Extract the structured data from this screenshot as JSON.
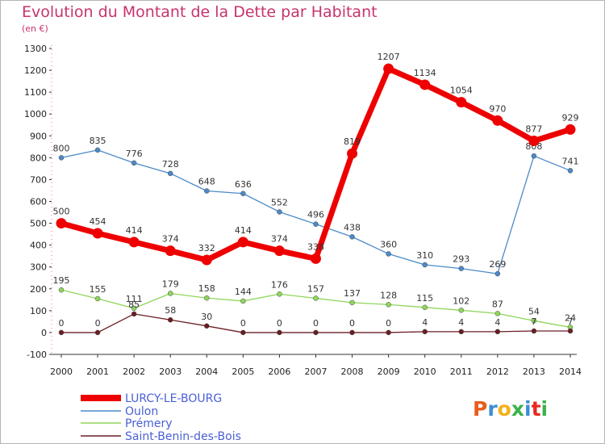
{
  "title": "Evolution du Montant de la Dette par Habitant",
  "unit": "(en €)",
  "logo": {
    "letters": [
      "P",
      "r",
      "o",
      "x",
      "i",
      "t",
      "i"
    ],
    "colors": [
      "#e85c1a",
      "#3a8fd4",
      "#f2b21c",
      "#3bb24a",
      "#3a8fd4",
      "#e8291f",
      "#3bb24a"
    ]
  },
  "chart_data": {
    "type": "line",
    "x": [
      2000,
      2001,
      2002,
      2003,
      2004,
      2005,
      2006,
      2007,
      2008,
      2009,
      2010,
      2011,
      2012,
      2013,
      2014
    ],
    "xlabels": [
      "2000",
      "2001",
      "2002",
      "2003",
      "2004",
      "2005",
      "2006",
      "2007",
      "2008",
      "2009",
      "2010",
      "2011",
      "2012",
      "2013",
      "2014"
    ],
    "ylim": [
      -100,
      1300
    ],
    "yticks": [
      -100,
      0,
      100,
      200,
      300,
      400,
      500,
      600,
      700,
      800,
      900,
      1000,
      1100,
      1200,
      1300
    ],
    "ytick_labels": [
      "-100",
      "0",
      "100",
      "200",
      "300",
      "400",
      "500",
      "600",
      "700",
      "800",
      "900",
      "1000",
      "1100",
      "1200",
      "1300"
    ],
    "grid": false,
    "legend_position": "bottom-left",
    "series": [
      {
        "name": "Oulon",
        "color": "#4a8ac9",
        "values": [
          800,
          835,
          776,
          728,
          648,
          636,
          552,
          496,
          438,
          360,
          310,
          293,
          269,
          808,
          741
        ],
        "labels": [
          "800",
          "835",
          "776",
          "728",
          "648",
          "636",
          "552",
          "496",
          "438",
          "360",
          "310",
          "293",
          "269",
          "808",
          "741"
        ]
      },
      {
        "name": "Prémery",
        "color": "#8fd65a",
        "values": [
          195,
          155,
          111,
          179,
          158,
          144,
          176,
          157,
          137,
          128,
          115,
          102,
          87,
          54,
          24
        ],
        "labels": [
          "195",
          "155",
          "111",
          "179",
          "158",
          "144",
          "176",
          "157",
          "137",
          "128",
          "115",
          "102",
          "87",
          "54",
          "24"
        ]
      },
      {
        "name": "Saint-Benin-des-Bois",
        "color": "#6b1e24",
        "values": [
          0,
          0,
          85,
          58,
          30,
          0,
          0,
          0,
          0,
          0,
          4,
          4,
          4,
          7,
          7
        ],
        "labels": [
          "0",
          "0",
          "85",
          "58",
          "30",
          "0",
          "0",
          "0",
          "0",
          "0",
          "4",
          "4",
          "4",
          "7",
          "7"
        ]
      },
      {
        "name": "LURCY-LE-BOURG",
        "color": "#ee0000",
        "values": [
          500,
          454,
          414,
          374,
          332,
          414,
          374,
          338,
          819,
          1207,
          1134,
          1054,
          970,
          877,
          929
        ],
        "labels": [
          "500",
          "454",
          "414",
          "374",
          "332",
          "414",
          "374",
          "338",
          "819",
          "1207",
          "1134",
          "1054",
          "970",
          "877",
          "929"
        ]
      }
    ],
    "legend": [
      "LURCY-LE-BOURG",
      "Oulon",
      "Prémery",
      "Saint-Benin-des-Bois"
    ]
  }
}
